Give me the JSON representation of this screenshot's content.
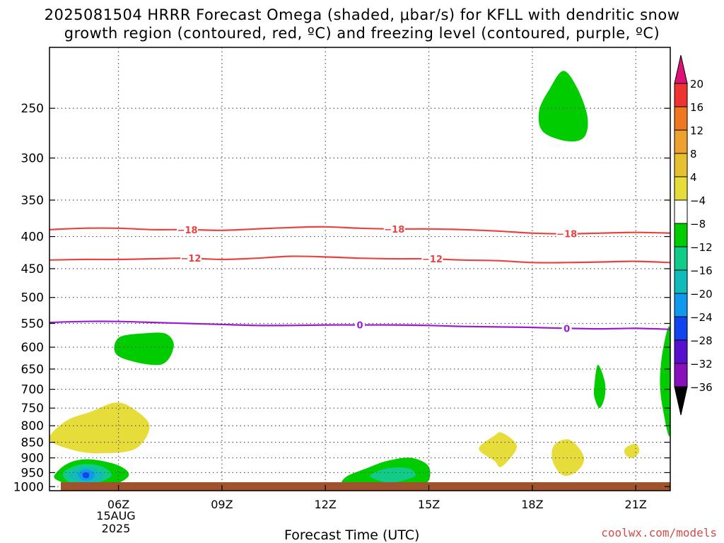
{
  "title": {
    "line1": "2025081504 HRRR Forecast Omega (shaded, μbar/s) for KFLL with dendritic snow",
    "line2": "growth region (contoured, red, ºC) and freezing level (contoured, purple, ºC)"
  },
  "credit": "coolwx.com/models",
  "chart_data": {
    "type": "contour",
    "title": "2025081504 HRRR Forecast Omega (shaded, μbar/s) for KFLL with dendritic snow growth region (contoured, red, ºC) and freezing level (contoured, purple, ºC)",
    "xlabel": "Forecast Time (UTC)",
    "x_ticks": [
      "06Z",
      "09Z",
      "12Z",
      "15Z",
      "18Z",
      "21Z"
    ],
    "x_date_label": [
      "15AUG",
      "2025"
    ],
    "x_range_hours_utc": [
      4,
      22
    ],
    "ylabel": "",
    "y_ticks": [
      "250",
      "300",
      "350",
      "400",
      "450",
      "500",
      "550",
      "600",
      "650",
      "700",
      "750",
      "800",
      "850",
      "900",
      "950",
      "1000"
    ],
    "y_range_hpa": [
      1015,
      200
    ],
    "y_scale": "pressure (log)",
    "grid": true,
    "colorbar": {
      "labels": [
        "20",
        "16",
        "12",
        "8",
        "4",
        "−4",
        "−8",
        "−12",
        "−16",
        "−20",
        "−24",
        "−28",
        "−32",
        "−36"
      ],
      "colors": [
        "#dd1177",
        "#ee3333",
        "#ee7722",
        "#eea030",
        "#e6c030",
        "#e6dc3a",
        "#ffffff",
        "#00cc00",
        "#11cc88",
        "#11bbbb",
        "#1199ee",
        "#1144ee",
        "#5511cc",
        "#8811bb",
        "#aa11cc",
        "#aaaaaa",
        "#000000"
      ]
    },
    "contours": [
      {
        "level": "−18",
        "color": "#e84343",
        "points": [
          [
            4,
            390
          ],
          [
            5,
            388
          ],
          [
            6,
            388
          ],
          [
            7,
            390
          ],
          [
            8,
            390
          ],
          [
            9,
            391
          ],
          [
            10,
            389
          ],
          [
            11,
            387
          ],
          [
            12,
            386
          ],
          [
            13,
            388
          ],
          [
            14,
            389
          ],
          [
            15,
            389
          ],
          [
            16,
            390
          ],
          [
            17,
            392
          ],
          [
            18,
            395
          ],
          [
            19,
            396
          ],
          [
            20,
            395
          ],
          [
            21,
            394
          ],
          [
            22,
            395
          ]
        ]
      },
      {
        "level": "−12",
        "color": "#e84343",
        "points": [
          [
            4,
            436
          ],
          [
            5,
            435
          ],
          [
            6,
            435
          ],
          [
            7,
            434
          ],
          [
            8,
            433
          ],
          [
            9,
            435
          ],
          [
            10,
            433
          ],
          [
            11,
            430
          ],
          [
            12,
            431
          ],
          [
            13,
            433
          ],
          [
            14,
            434
          ],
          [
            15,
            434
          ],
          [
            16,
            436
          ],
          [
            17,
            437
          ],
          [
            18,
            440
          ],
          [
            19,
            440
          ],
          [
            20,
            439
          ],
          [
            21,
            438
          ],
          [
            22,
            440
          ]
        ]
      },
      {
        "level": "0",
        "color": "#9a1ccf",
        "points": [
          [
            4,
            548
          ],
          [
            5,
            546
          ],
          [
            6,
            546
          ],
          [
            7,
            548
          ],
          [
            8,
            550
          ],
          [
            9,
            552
          ],
          [
            10,
            554
          ],
          [
            11,
            554
          ],
          [
            12,
            553
          ],
          [
            13,
            553
          ],
          [
            14,
            553
          ],
          [
            15,
            554
          ],
          [
            16,
            556
          ],
          [
            17,
            557
          ],
          [
            18,
            558
          ],
          [
            19,
            560
          ],
          [
            20,
            561
          ],
          [
            21,
            560
          ],
          [
            22,
            562
          ]
        ]
      }
    ],
    "contour_labels": [
      {
        "text": "−18",
        "color": "#e84343",
        "x": 8.0,
        "y": 390
      },
      {
        "text": "−18",
        "color": "#e84343",
        "x": 14.0,
        "y": 389
      },
      {
        "text": "−18",
        "color": "#e84343",
        "x": 19.0,
        "y": 396
      },
      {
        "text": "−12",
        "color": "#e84343",
        "x": 8.1,
        "y": 433
      },
      {
        "text": "−12",
        "color": "#e84343",
        "x": 15.1,
        "y": 434
      },
      {
        "text": "0",
        "color": "#9a1ccf",
        "x": 13.0,
        "y": 553
      },
      {
        "text": "0",
        "color": "#9a1ccf",
        "x": 19.0,
        "y": 560
      }
    ],
    "shaded_regions": [
      {
        "name": "yellow-850-low",
        "range": "4 to 8",
        "color": "#e6dc3a",
        "points": [
          [
            4.0,
            840
          ],
          [
            4.5,
            785
          ],
          [
            5.2,
            760
          ],
          [
            5.9,
            735
          ],
          [
            6.4,
            750
          ],
          [
            6.9,
            800
          ],
          [
            6.5,
            870
          ],
          [
            5.5,
            885
          ],
          [
            4.7,
            875
          ],
          [
            4.0,
            840
          ]
        ]
      },
      {
        "name": "green-950-early",
        "range": "-4 to -8",
        "color": "#00cc00",
        "points": [
          [
            4.2,
            950
          ],
          [
            4.6,
            915
          ],
          [
            5.2,
            905
          ],
          [
            6.0,
            925
          ],
          [
            6.3,
            960
          ],
          [
            5.8,
            995
          ],
          [
            4.9,
            1000
          ],
          [
            4.2,
            975
          ],
          [
            4.2,
            950
          ]
        ]
      },
      {
        "name": "teal-950-early",
        "range": "-8 to -12",
        "color": "#11cc88",
        "points": [
          [
            4.4,
            950
          ],
          [
            4.9,
            922
          ],
          [
            5.5,
            928
          ],
          [
            5.8,
            960
          ],
          [
            5.3,
            988
          ],
          [
            4.6,
            985
          ],
          [
            4.4,
            950
          ]
        ]
      },
      {
        "name": "cyan-950-early",
        "range": "-12 to -16",
        "color": "#11bbbb",
        "points": [
          [
            4.6,
            952
          ],
          [
            5.0,
            932
          ],
          [
            5.5,
            945
          ],
          [
            5.5,
            975
          ],
          [
            5.0,
            985
          ],
          [
            4.6,
            970
          ],
          [
            4.6,
            952
          ]
        ]
      },
      {
        "name": "blue-950-early",
        "range": "-16 to -20",
        "color": "#1199ee",
        "points": [
          [
            4.85,
            950
          ],
          [
            5.05,
            938
          ],
          [
            5.3,
            950
          ],
          [
            5.25,
            972
          ],
          [
            5.0,
            978
          ],
          [
            4.85,
            965
          ],
          [
            4.85,
            950
          ]
        ]
      },
      {
        "name": "darkblue-950-early",
        "range": "-20 to -24",
        "color": "#1144ee",
        "points": [
          [
            4.96,
            955
          ],
          [
            5.05,
            948
          ],
          [
            5.15,
            955
          ],
          [
            5.12,
            968
          ],
          [
            5.0,
            968
          ],
          [
            4.96,
            955
          ]
        ]
      },
      {
        "name": "green-600",
        "range": "-4 to -8",
        "color": "#00cc00",
        "points": [
          [
            6.0,
            580
          ],
          [
            6.8,
            570
          ],
          [
            7.4,
            572
          ],
          [
            7.6,
            600
          ],
          [
            7.2,
            640
          ],
          [
            6.0,
            620
          ],
          [
            6.0,
            580
          ]
        ]
      },
      {
        "name": "green-950-mid",
        "range": "-4 to -8",
        "color": "#00cc00",
        "points": [
          [
            12.6,
            965
          ],
          [
            13.2,
            935
          ],
          [
            13.8,
            910
          ],
          [
            14.5,
            900
          ],
          [
            15.0,
            930
          ],
          [
            14.9,
            990
          ],
          [
            14.0,
            995
          ],
          [
            12.6,
            995
          ],
          [
            12.6,
            965
          ]
        ]
      },
      {
        "name": "teal-950-mid",
        "range": "-8 to -12",
        "color": "#11cc88",
        "points": [
          [
            13.3,
            960
          ],
          [
            13.8,
            935
          ],
          [
            14.4,
            935
          ],
          [
            14.6,
            962
          ],
          [
            14.0,
            985
          ],
          [
            13.6,
            980
          ],
          [
            13.3,
            960
          ]
        ]
      },
      {
        "name": "green-250",
        "range": "-4 to -8",
        "color": "#00cc00",
        "points": [
          [
            18.2,
            252
          ],
          [
            18.5,
            233
          ],
          [
            18.9,
            218
          ],
          [
            19.3,
            232
          ],
          [
            19.6,
            258
          ],
          [
            19.5,
            278
          ],
          [
            19.0,
            282
          ],
          [
            18.3,
            272
          ],
          [
            18.2,
            252
          ]
        ]
      },
      {
        "name": "green-700-narrow",
        "range": "-4 to -8",
        "color": "#00cc00",
        "points": [
          [
            19.8,
            690
          ],
          [
            19.9,
            640
          ],
          [
            20.1,
            680
          ],
          [
            20.1,
            720
          ],
          [
            19.95,
            750
          ],
          [
            19.8,
            720
          ],
          [
            19.8,
            690
          ]
        ]
      },
      {
        "name": "green-right-edge",
        "range": "-4 to -8",
        "color": "#00cc00",
        "points": [
          [
            22.0,
            565
          ],
          [
            21.8,
            600
          ],
          [
            21.7,
            680
          ],
          [
            21.8,
            760
          ],
          [
            22.0,
            820
          ],
          [
            22.0,
            565
          ]
        ]
      },
      {
        "name": "yellow-850-a",
        "range": "4 to 8",
        "color": "#e6dc3a",
        "points": [
          [
            16.5,
            860
          ],
          [
            16.9,
            830
          ],
          [
            17.1,
            820
          ],
          [
            17.5,
            850
          ],
          [
            17.5,
            880
          ],
          [
            17.1,
            930
          ],
          [
            16.9,
            910
          ],
          [
            16.5,
            880
          ],
          [
            16.5,
            860
          ]
        ]
      },
      {
        "name": "yellow-850-b",
        "range": "4 to 8",
        "color": "#e6dc3a",
        "points": [
          [
            18.6,
            865
          ],
          [
            18.9,
            842
          ],
          [
            19.2,
            850
          ],
          [
            19.5,
            900
          ],
          [
            19.3,
            945
          ],
          [
            18.9,
            960
          ],
          [
            18.6,
            915
          ],
          [
            18.6,
            865
          ]
        ]
      },
      {
        "name": "yellow-850-c",
        "range": "4 to 8",
        "color": "#e6dc3a",
        "points": [
          [
            20.7,
            868
          ],
          [
            21.0,
            855
          ],
          [
            21.1,
            880
          ],
          [
            20.9,
            900
          ],
          [
            20.7,
            890
          ],
          [
            20.7,
            868
          ]
        ]
      }
    ]
  }
}
